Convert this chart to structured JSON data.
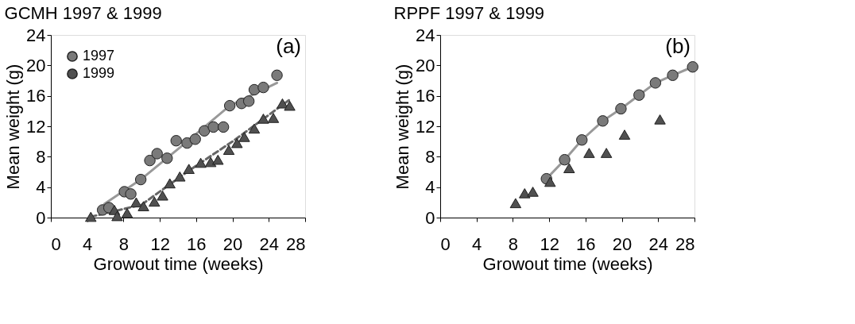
{
  "chart_data": [
    {
      "type": "scatter",
      "title": "GCMH  1997 & 1999",
      "xlabel": "Growout time (weeks)",
      "ylabel": "Mean weight (g)",
      "annotations": [
        "(a)"
      ],
      "xlim": [
        0,
        28
      ],
      "ylim": [
        0,
        24
      ],
      "xticks": [
        0,
        4,
        8,
        12,
        16,
        20,
        24,
        28
      ],
      "yticks": [
        0,
        4,
        8,
        12,
        16,
        20,
        24
      ],
      "grid": false,
      "legend": "top left",
      "series": [
        {
          "name": "1997",
          "marker": "circle",
          "color": "#7a7a7a",
          "x": [
            5.7,
            6.4,
            8.1,
            8.8,
            9.9,
            10.9,
            11.7,
            12.8,
            13.8,
            15.0,
            15.9,
            16.9,
            17.9,
            19.0,
            19.7,
            21.0,
            21.8,
            22.4,
            23.4,
            24.9
          ],
          "values": [
            1.0,
            1.3,
            3.4,
            3.1,
            5.0,
            7.5,
            8.4,
            7.8,
            10.1,
            9.8,
            10.3,
            11.4,
            11.9,
            11.9,
            14.7,
            15.0,
            15.3,
            16.8,
            17.1,
            18.7
          ]
        },
        {
          "name": "1999",
          "marker": "triangle",
          "color": "#505050",
          "x": [
            4.4,
            7.0,
            7.3,
            8.4,
            9.4,
            10.2,
            11.4,
            12.3,
            13.1,
            14.2,
            15.2,
            16.5,
            17.6,
            18.4,
            19.6,
            20.5,
            21.3,
            22.4,
            23.4,
            24.5,
            25.5,
            26.3
          ],
          "values": [
            0.1,
            1.0,
            0.2,
            0.6,
            2.0,
            1.5,
            2.1,
            2.9,
            4.5,
            5.4,
            6.4,
            7.2,
            7.3,
            7.6,
            8.9,
            9.8,
            10.6,
            11.7,
            13.0,
            13.1,
            15.0,
            14.7
          ]
        },
        {
          "type": "line",
          "line_style": "solid",
          "color": "#999999",
          "x": [
            5.9,
            9.9,
            14.7,
            19.7,
            24.9
          ],
          "values": [
            1.8,
            5.0,
            9.7,
            14.7,
            17.7
          ]
        },
        {
          "type": "line",
          "line_style": "dashed",
          "color": "#666666",
          "x": [
            4.4,
            10,
            15,
            20,
            26.3
          ],
          "values": [
            0.1,
            1.7,
            6.0,
            10.0,
            15.5
          ]
        }
      ]
    },
    {
      "type": "scatter",
      "title": "RPPF  1997 & 1999",
      "xlabel": "Growout time (weeks)",
      "ylabel": "Mean weight (g)",
      "annotations": [
        "(b)"
      ],
      "xlim": [
        0,
        28
      ],
      "ylim": [
        0,
        24
      ],
      "xticks": [
        0,
        4,
        8,
        12,
        16,
        20,
        24,
        28
      ],
      "yticks": [
        0,
        4,
        8,
        12,
        16,
        20,
        24
      ],
      "grid": false,
      "legend": "top left",
      "series": [
        {
          "type": "line",
          "line_style": "solid",
          "color": "#999999",
          "x": [
            11.7,
            13.7,
            15.6,
            17.9,
            19.9,
            21.9,
            23.7,
            25.6,
            27.8
          ],
          "values": [
            5.1,
            7.6,
            10.2,
            12.7,
            14.3,
            16.1,
            17.7,
            18.7,
            19.8
          ]
        },
        {
          "name": "1997",
          "marker": "circle",
          "color": "#7a7a7a",
          "x": [
            11.7,
            13.7,
            15.6,
            17.9,
            19.9,
            21.9,
            23.7,
            25.6,
            27.8
          ],
          "values": [
            5.1,
            7.6,
            10.2,
            12.7,
            14.3,
            16.1,
            17.7,
            18.7,
            19.8
          ]
        },
        {
          "name": "1999",
          "marker": "triangle",
          "color": "#505050",
          "x": [
            8.3,
            9.3,
            10.2,
            12.1,
            14.2,
            16.4,
            18.3,
            20.3,
            24.2
          ],
          "values": [
            1.9,
            3.2,
            3.4,
            4.7,
            6.5,
            8.5,
            8.5,
            10.9,
            12.9
          ]
        }
      ]
    }
  ]
}
